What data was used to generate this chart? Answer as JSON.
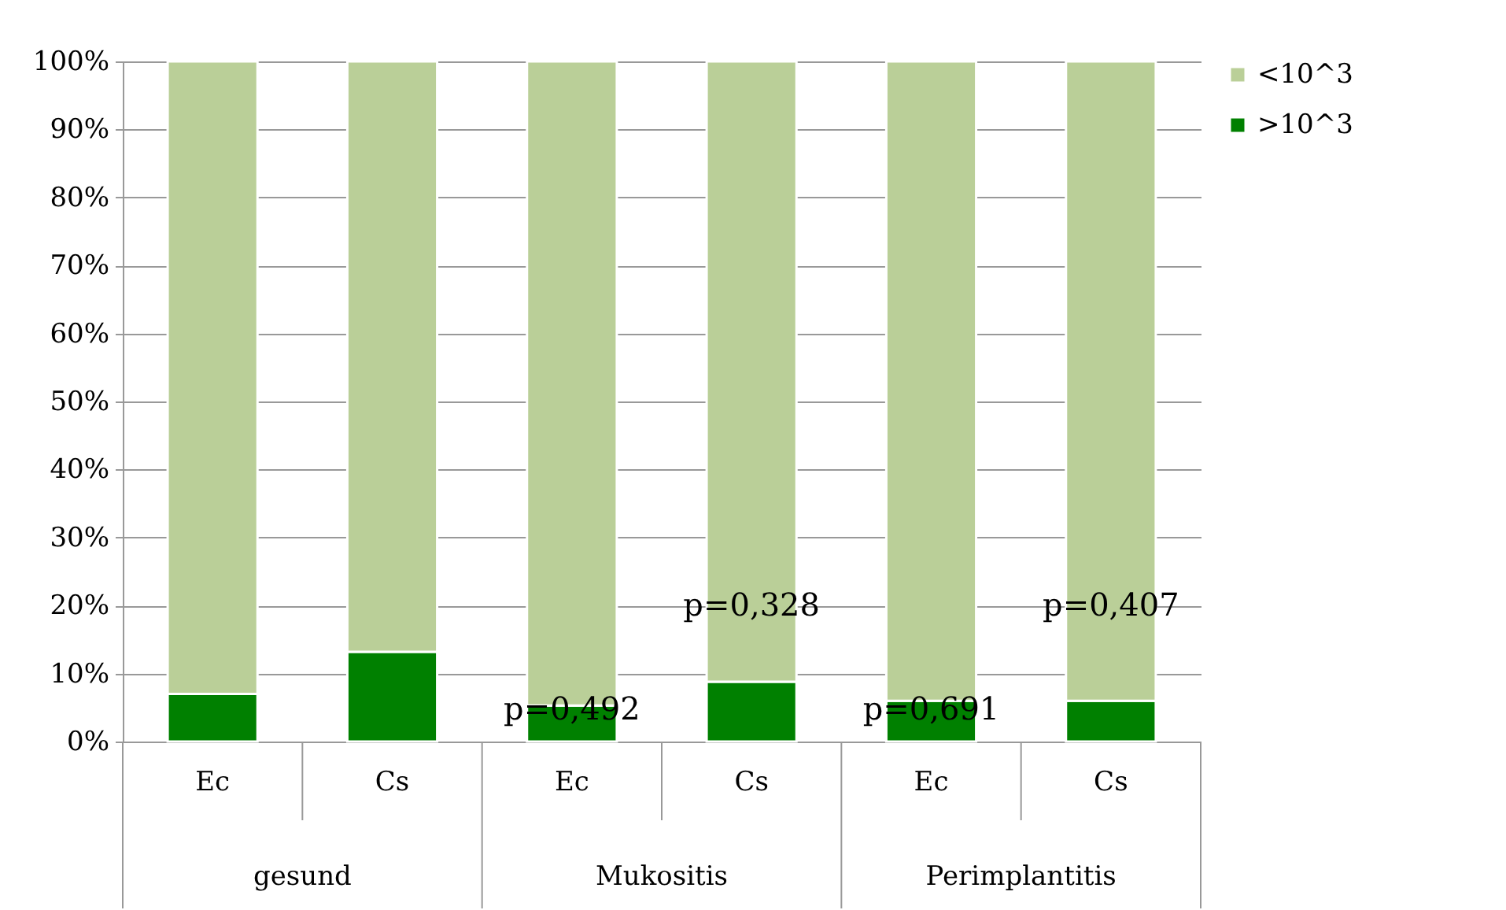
{
  "chart_data": {
    "type": "bar",
    "stacked": true,
    "categories": [
      "Ec",
      "Cs",
      "Ec",
      "Cs",
      "Ec",
      "Cs"
    ],
    "series": [
      {
        "name": ">10^3",
        "color": "#008000",
        "values": [
          7.0,
          13.2,
          5.3,
          8.8,
          6.0,
          6.0
        ]
      },
      {
        "name": "<10^3",
        "color": "#bacf98",
        "values": [
          93.0,
          86.8,
          94.7,
          91.2,
          94.0,
          94.0
        ]
      }
    ],
    "ylim": [
      0,
      100
    ],
    "yticks": [
      {
        "value": 0,
        "label": "0%"
      },
      {
        "value": 10,
        "label": "10%"
      },
      {
        "value": 20,
        "label": "20%"
      },
      {
        "value": 30,
        "label": "30%"
      },
      {
        "value": 40,
        "label": "40%"
      },
      {
        "value": 50,
        "label": "50%"
      },
      {
        "value": 60,
        "label": "60%"
      },
      {
        "value": 70,
        "label": "70%"
      },
      {
        "value": 80,
        "label": "80%"
      },
      {
        "value": 90,
        "label": "90%"
      },
      {
        "value": 100,
        "label": "100%"
      }
    ],
    "grid": "y",
    "legend": "right",
    "annotations": [
      "gesund",
      "Mukositis",
      "Perimplantitis",
      "p=0,492",
      "p=0,328",
      "p=0,691",
      "p=0,407"
    ]
  }
}
